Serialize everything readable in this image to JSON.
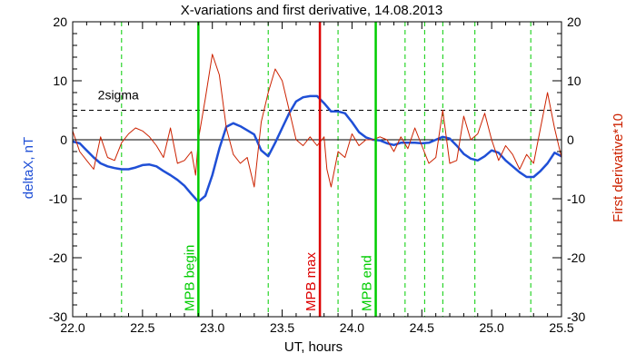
{
  "chart_data": {
    "type": "line",
    "title": "X-variations and first derivative, 14.08.2013",
    "xlabel": "UT, hours",
    "ylabel_left": "deltaX, nT",
    "ylabel_right": "First derivative*10",
    "xlim": [
      22.0,
      25.5
    ],
    "ylim": [
      -30,
      20
    ],
    "xticks": [
      22.0,
      22.5,
      23.0,
      23.5,
      24.0,
      24.5,
      25.0,
      25.5
    ],
    "xtick_labels": [
      "22.0",
      "22.5",
      "23.0",
      "23.5",
      "24.0",
      "24.5",
      "25.0",
      "25.5"
    ],
    "yticks": [
      20,
      10,
      0,
      -10,
      -20,
      -30
    ],
    "ytick_labels": [
      "20",
      "10",
      "0",
      "-10",
      "-20",
      "-30"
    ],
    "threshold": {
      "label": "2sigma",
      "value": 5.0
    },
    "markers": [
      {
        "label": "MPB begin",
        "x": 22.9,
        "color": "#00cc00"
      },
      {
        "label": "MPB max",
        "x": 23.77,
        "color": "#dd0000"
      },
      {
        "label": "MPB end",
        "x": 24.17,
        "color": "#00cc00"
      }
    ],
    "dashed_verticals": [
      22.35,
      23.4,
      23.9,
      24.38,
      24.52,
      24.65,
      24.88,
      25.28
    ],
    "series": [
      {
        "role": "deltaX",
        "axis": "left",
        "color": "#1f4fd6",
        "x": [
          22.0,
          22.05,
          22.1,
          22.15,
          22.2,
          22.25,
          22.3,
          22.35,
          22.4,
          22.45,
          22.5,
          22.55,
          22.6,
          22.65,
          22.7,
          22.75,
          22.8,
          22.85,
          22.9,
          22.95,
          23.0,
          23.05,
          23.1,
          23.15,
          23.2,
          23.25,
          23.3,
          23.35,
          23.4,
          23.45,
          23.5,
          23.55,
          23.6,
          23.65,
          23.7,
          23.75,
          23.8,
          23.85,
          23.9,
          23.95,
          24.0,
          24.05,
          24.1,
          24.15,
          24.2,
          24.25,
          24.3,
          24.35,
          24.4,
          24.45,
          24.5,
          24.55,
          24.6,
          24.65,
          24.7,
          24.75,
          24.8,
          24.85,
          24.9,
          24.95,
          25.0,
          25.05,
          25.1,
          25.15,
          25.2,
          25.25,
          25.3,
          25.35,
          25.4,
          25.45,
          25.5
        ],
        "values": [
          -0.3,
          -0.6,
          -1.8,
          -3.0,
          -4.0,
          -4.5,
          -4.8,
          -5.0,
          -5.0,
          -4.7,
          -4.3,
          -4.2,
          -4.5,
          -5.3,
          -6.0,
          -6.8,
          -7.8,
          -9.2,
          -10.5,
          -9.5,
          -6.0,
          -1.5,
          2.2,
          2.8,
          2.3,
          1.6,
          0.9,
          -1.8,
          -2.8,
          -0.5,
          2.0,
          4.5,
          6.5,
          7.2,
          7.4,
          7.4,
          6.2,
          4.8,
          4.8,
          4.5,
          3.0,
          1.3,
          0.4,
          0.0,
          -0.1,
          -0.6,
          -0.9,
          -0.5,
          -0.5,
          -0.5,
          -0.6,
          -0.5,
          0.0,
          0.5,
          0.2,
          -1.0,
          -2.4,
          -3.2,
          -3.5,
          -2.8,
          -1.8,
          -2.2,
          -3.5,
          -4.5,
          -5.5,
          -6.3,
          -6.3,
          -5.3,
          -4.0,
          -2.2,
          -2.8
        ]
      },
      {
        "role": "derivative",
        "axis": "right",
        "color": "#cc2200",
        "x": [
          22.0,
          22.05,
          22.1,
          22.15,
          22.2,
          22.25,
          22.3,
          22.35,
          22.4,
          22.45,
          22.5,
          22.55,
          22.6,
          22.65,
          22.7,
          22.75,
          22.8,
          22.85,
          22.88,
          22.9,
          22.95,
          23.0,
          23.05,
          23.1,
          23.15,
          23.2,
          23.25,
          23.3,
          23.35,
          23.4,
          23.45,
          23.5,
          23.55,
          23.6,
          23.65,
          23.7,
          23.75,
          23.8,
          23.82,
          23.85,
          23.9,
          23.95,
          24.0,
          24.05,
          24.1,
          24.15,
          24.2,
          24.25,
          24.3,
          24.35,
          24.4,
          24.45,
          24.5,
          24.55,
          24.6,
          24.65,
          24.7,
          24.75,
          24.8,
          24.85,
          24.9,
          24.95,
          25.0,
          25.05,
          25.1,
          25.15,
          25.2,
          25.25,
          25.3,
          25.35,
          25.4,
          25.45,
          25.5
        ],
        "values": [
          1.5,
          -2.0,
          -3.5,
          -5.0,
          0.5,
          -3.0,
          -3.5,
          -0.5,
          1.0,
          2.0,
          1.5,
          0.5,
          -1.0,
          -3.0,
          2.0,
          -4.0,
          -3.5,
          -2.0,
          -6.0,
          0.0,
          7.0,
          14.5,
          11.0,
          2.0,
          -2.5,
          -4.0,
          -3.0,
          -8.0,
          3.0,
          8.0,
          12.0,
          10.0,
          5.0,
          0.0,
          -1.0,
          0.5,
          -1.0,
          0.5,
          -5.0,
          -8.0,
          -2.0,
          -3.0,
          1.0,
          -1.0,
          0.0,
          0.0,
          0.5,
          0.0,
          -2.0,
          0.5,
          -1.5,
          2.0,
          -1.0,
          -4.0,
          -3.0,
          5.0,
          -4.0,
          -3.5,
          4.0,
          0.0,
          1.0,
          4.5,
          0.0,
          -3.5,
          -1.0,
          -2.5,
          -5.0,
          -2.5,
          -4.0,
          2.0,
          8.0,
          2.0,
          -3.0
        ]
      }
    ]
  }
}
